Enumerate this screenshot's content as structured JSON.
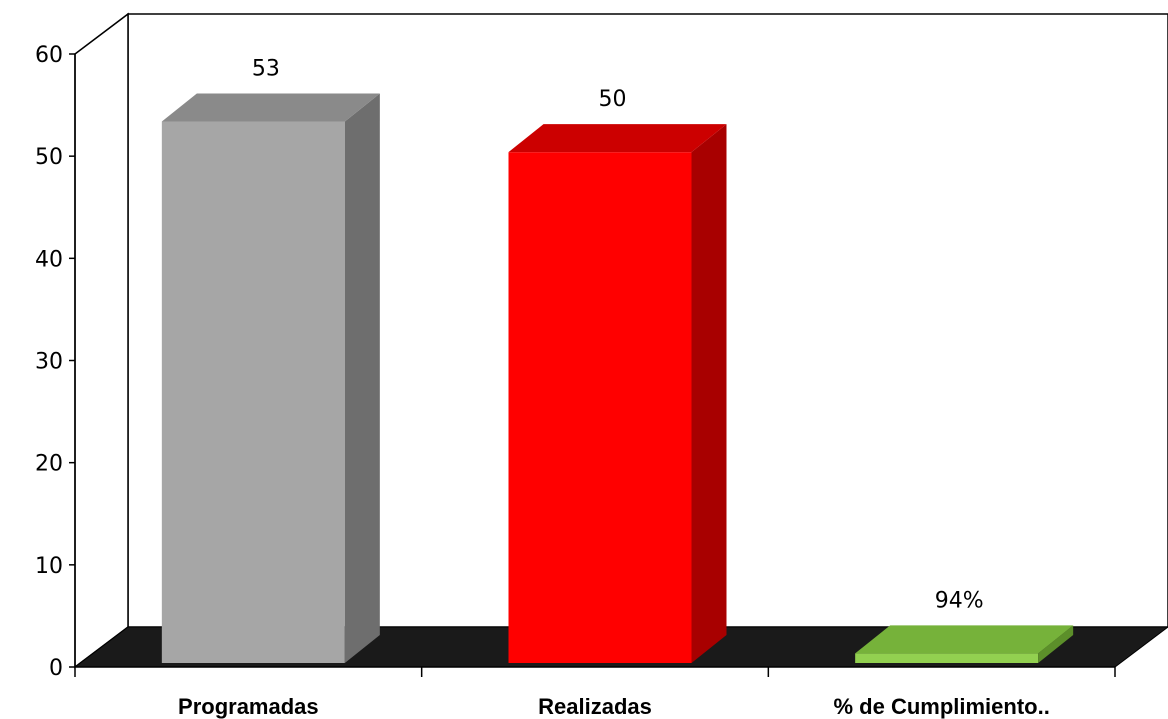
{
  "chart_data": {
    "type": "bar",
    "categories": [
      "Programadas",
      "Realizadas",
      "% de Cumplimiento.."
    ],
    "values": [
      53,
      50,
      0.94
    ],
    "data_labels": [
      "53",
      "50",
      "94%"
    ],
    "ylim": [
      0,
      60
    ],
    "yticks": [
      0,
      10,
      20,
      30,
      40,
      50,
      60
    ],
    "grid": false,
    "legend": "none",
    "style": "3d-column",
    "bar_colors": [
      {
        "front": "#a6a6a6",
        "side": "#6e6e6e",
        "top": "#8a8a8a"
      },
      {
        "front": "#ff0000",
        "side": "#a80000",
        "top": "#cc0000"
      },
      {
        "front": "#92d050",
        "side": "#5c8f2a",
        "top": "#76b23a"
      }
    ],
    "floor_color": "#1a1a1a"
  }
}
